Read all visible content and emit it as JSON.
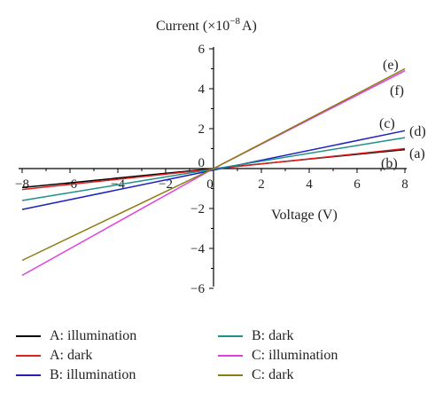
{
  "chart_data": {
    "type": "line",
    "ylabel_text": "Current (×10",
    "ylabel_exp": "−8",
    "ylabel_unit": "A)",
    "xlabel": "Voltage (V)",
    "xlim": [
      -8,
      8
    ],
    "ylim": [
      -6,
      6
    ],
    "x_ticks": [
      "−8",
      "−6",
      "−4",
      "−2",
      "0",
      "2",
      "4",
      "6",
      "8"
    ],
    "y_ticks": [
      "−6",
      "−4",
      "−2",
      "0",
      "2",
      "4",
      "6"
    ],
    "grid": false,
    "legend_position": "bottom",
    "series": [
      {
        "name": "A: illumination",
        "color": "#000000",
        "x": [
          -8,
          8
        ],
        "y": [
          -0.95,
          0.95
        ],
        "label": ""
      },
      {
        "name": "A: dark",
        "color": "#e02020",
        "x": [
          -8,
          8
        ],
        "y": [
          -1.05,
          1.0
        ],
        "label": "(a)"
      },
      {
        "name": "B: illumination",
        "color": "#2020c0",
        "x": [
          -8,
          8
        ],
        "y": [
          -2.05,
          1.9
        ],
        "label": "(c)"
      },
      {
        "name": "B: dark",
        "color": "#20908a",
        "x": [
          -8,
          8
        ],
        "y": [
          -1.6,
          1.55
        ],
        "label": "(d)"
      },
      {
        "name": "C: illumination",
        "color": "#e040e0",
        "x": [
          -8,
          0,
          8
        ],
        "y": [
          -5.35,
          0,
          4.9
        ],
        "label": "(e)"
      },
      {
        "name": "C: dark",
        "color": "#8a7d10",
        "x": [
          -8,
          0,
          8
        ],
        "y": [
          -4.6,
          0,
          5.0
        ],
        "label": "(f)"
      }
    ],
    "extra_labels": [
      "(b)"
    ]
  },
  "legend": [
    {
      "label": "A: illumination",
      "color": "#000000"
    },
    {
      "label": "A: dark",
      "color": "#e02020"
    },
    {
      "label": "B: illumination",
      "color": "#2020c0"
    },
    {
      "label": "B: dark",
      "color": "#20908a"
    },
    {
      "label": "C: illumination",
      "color": "#e040e0"
    },
    {
      "label": "C: dark",
      "color": "#8a7d10"
    }
  ]
}
